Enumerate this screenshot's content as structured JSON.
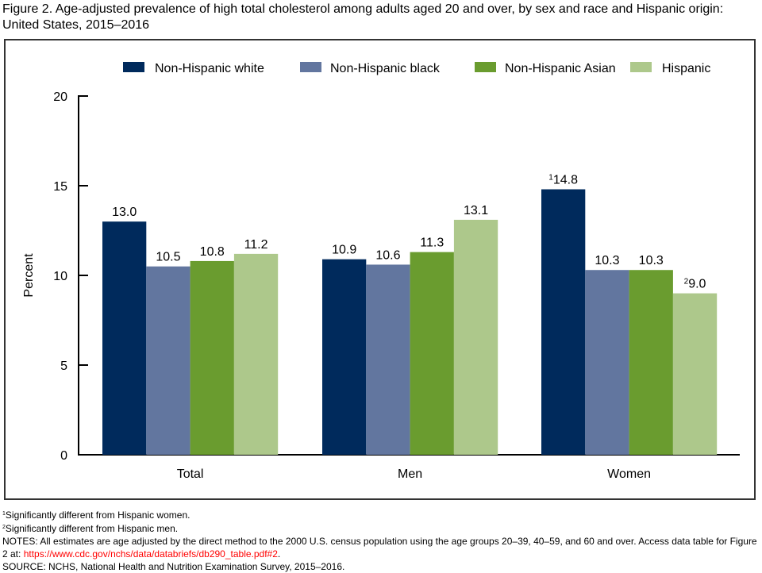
{
  "title": "Figure 2. Age-adjusted prevalence of high total cholesterol among adults aged 20 and over, by sex and race and Hispanic origin: United States, 2015–2016",
  "chart_data": {
    "type": "bar",
    "title": "Figure 2. Age-adjusted prevalence of high total cholesterol among adults aged 20 and over, by sex and race and Hispanic origin: United States, 2015–2016",
    "xlabel": "",
    "ylabel": "Percent",
    "ylim": [
      0,
      20
    ],
    "yticks": [
      "0",
      "5",
      "10",
      "15",
      "20"
    ],
    "grid": false,
    "legend_position": "top",
    "categories": [
      "Total",
      "Men",
      "Women"
    ],
    "series": [
      {
        "name": "Non-Hispanic white",
        "color": "#002a5c",
        "values": [
          13.0,
          10.9,
          14.8
        ],
        "labels": [
          "13.0",
          "10.9",
          "14.8"
        ],
        "superscripts": [
          "",
          "",
          "1"
        ]
      },
      {
        "name": "Non-Hispanic black",
        "color": "#62769f",
        "values": [
          10.5,
          10.6,
          10.3
        ],
        "labels": [
          "10.5",
          "10.6",
          "10.3"
        ],
        "superscripts": [
          "",
          "",
          ""
        ]
      },
      {
        "name": "Non-Hispanic Asian",
        "color": "#6a9c2f",
        "values": [
          10.8,
          11.3,
          10.3
        ],
        "labels": [
          "10.8",
          "11.3",
          "10.3"
        ],
        "superscripts": [
          "",
          "",
          ""
        ]
      },
      {
        "name": "Hispanic",
        "color": "#adc88b",
        "values": [
          11.2,
          13.1,
          9.0
        ],
        "labels": [
          "11.2",
          "13.1",
          "9.0"
        ],
        "superscripts": [
          "",
          "",
          "2"
        ]
      }
    ]
  },
  "notes": {
    "footnote1_mark": "1",
    "footnote1": "Significantly different from Hispanic women.",
    "footnote2_mark": "2",
    "footnote2": "Significantly different from Hispanic men.",
    "notes_text": "NOTES: All estimates are age adjusted by the direct method to the 2000 U.S. census population using the age groups 20–39, 40–59, and 60 and over. Access data table for Figure 2 at: ",
    "link": "https://www.cdc.gov/nchs/data/databriefs/db290_table.pdf#2",
    "link_after": ".",
    "source": "SOURCE: NCHS, National Health and Nutrition Examination Survey, 2015–2016."
  }
}
